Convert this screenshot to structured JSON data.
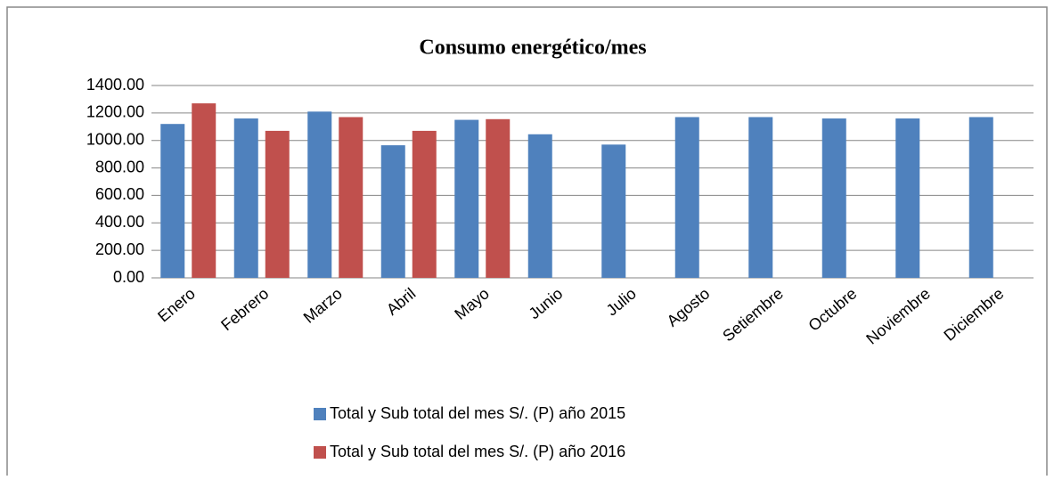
{
  "chart_data": {
    "type": "bar",
    "title": "Consumo energético/mes",
    "categories": [
      "Enero",
      "Febrero",
      "Marzo",
      "Abril",
      "Mayo",
      "Junio",
      "Julio",
      "Agosto",
      "Setiembre",
      "Octubre",
      "Noviembre",
      "Diciembre"
    ],
    "series": [
      {
        "name": "Total y Sub total del mes S/. (P) año 2015",
        "color": "#4f81bd",
        "values": [
          1120,
          1160,
          1210,
          965,
          1150,
          1045,
          970,
          1170,
          1170,
          1160,
          1160,
          1170
        ]
      },
      {
        "name": "Total y Sub total del mes S/. (P) año 2016",
        "color": "#c0504d",
        "values": [
          1270,
          1070,
          1170,
          1070,
          1155,
          null,
          null,
          null,
          null,
          null,
          null,
          null
        ]
      }
    ],
    "ylim": [
      0,
      1400
    ],
    "yticks": [
      {
        "value": 0,
        "label": "0.00"
      },
      {
        "value": 200,
        "label": "200.00"
      },
      {
        "value": 400,
        "label": "400.00"
      },
      {
        "value": 600,
        "label": "600.00"
      },
      {
        "value": 800,
        "label": "800.00"
      },
      {
        "value": 1000,
        "label": "1000.00"
      },
      {
        "value": 1200,
        "label": "1200.00"
      },
      {
        "value": 1400,
        "label": "1400.00"
      }
    ],
    "grid": true,
    "legend": "bottom"
  }
}
